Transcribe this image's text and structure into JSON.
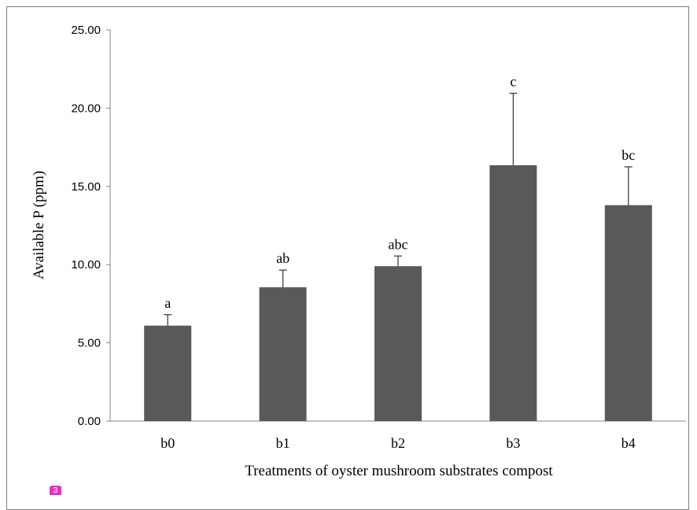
{
  "chart_data": {
    "type": "bar",
    "categories": [
      "b0",
      "b1",
      "b2",
      "b3",
      "b4"
    ],
    "values": [
      6.1,
      8.55,
      9.9,
      16.35,
      13.8
    ],
    "error_plus": [
      0.7,
      1.1,
      0.65,
      4.6,
      2.45
    ],
    "significance_labels": [
      "a",
      "ab",
      "abc",
      "c",
      "bc"
    ],
    "xlabel": "Treatments of oyster mushroom substrates compost",
    "ylabel": "Available P (ppm)",
    "ylim": [
      0,
      25
    ],
    "yticks": [
      "0.00",
      "5.00",
      "10.00",
      "15.00",
      "20.00",
      "25.00"
    ],
    "grid": false,
    "bar_color": "#595959"
  },
  "badge": {
    "text": "3",
    "color": "#e032c8"
  }
}
